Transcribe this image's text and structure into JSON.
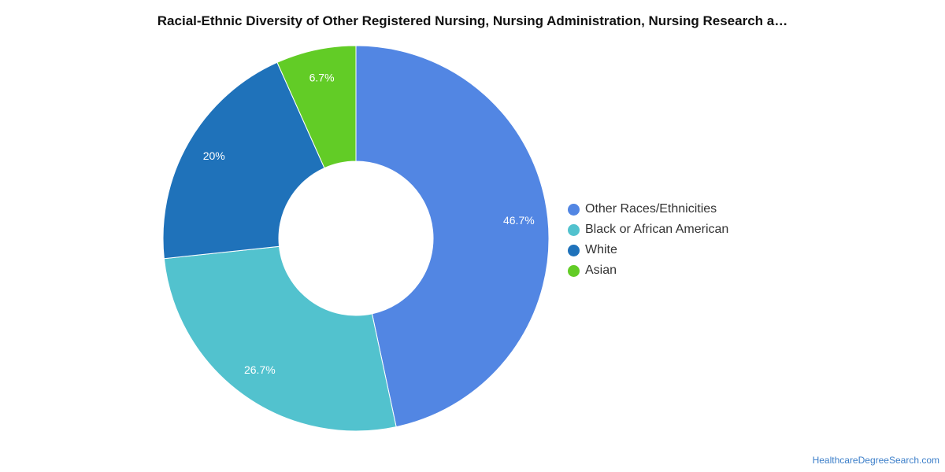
{
  "chart_data": {
    "type": "pie",
    "donut": true,
    "title": "Racial-Ethnic Diversity of Other Registered Nursing, Nursing Administration, Nursing Research a…",
    "categories": [
      "Other Races/Ethnicities",
      "Black or African American",
      "White",
      "Asian"
    ],
    "values": [
      46.7,
      26.7,
      20,
      6.7
    ],
    "labels": [
      "46.7%",
      "26.7%",
      "20%",
      "6.7%"
    ],
    "colors": [
      "#5286e3",
      "#52c2ce",
      "#1f72ba",
      "#62cc26"
    ],
    "legend": "right"
  },
  "source": "HealthcareDegreeSearch.com"
}
